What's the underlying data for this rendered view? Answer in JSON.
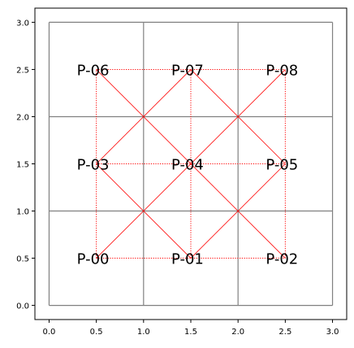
{
  "chart_data": {
    "type": "diagram",
    "xlim": [
      -0.15,
      3.15
    ],
    "ylim": [
      -0.15,
      3.15
    ],
    "x_ticks": [
      {
        "value": 0.0,
        "label": "0.0"
      },
      {
        "value": 0.5,
        "label": "0.5"
      },
      {
        "value": 1.0,
        "label": "1.0"
      },
      {
        "value": 1.5,
        "label": "1.5"
      },
      {
        "value": 2.0,
        "label": "2.0"
      },
      {
        "value": 2.5,
        "label": "2.5"
      },
      {
        "value": 3.0,
        "label": "3.0"
      }
    ],
    "y_ticks": [
      {
        "value": 0.0,
        "label": "0.0"
      },
      {
        "value": 0.5,
        "label": "0.5"
      },
      {
        "value": 1.0,
        "label": "1.0"
      },
      {
        "value": 1.5,
        "label": "1.5"
      },
      {
        "value": 2.0,
        "label": "2.0"
      },
      {
        "value": 2.5,
        "label": "2.5"
      },
      {
        "value": 3.0,
        "label": "3.0"
      }
    ],
    "grid": {
      "extent": [
        0,
        3
      ],
      "lines_at": [
        0,
        1,
        2,
        3
      ],
      "color": "#808080"
    },
    "points": [
      {
        "label": "P-00",
        "x": 0.5,
        "y": 0.5
      },
      {
        "label": "P-01",
        "x": 1.5,
        "y": 0.5
      },
      {
        "label": "P-02",
        "x": 2.5,
        "y": 0.5
      },
      {
        "label": "P-03",
        "x": 0.5,
        "y": 1.5
      },
      {
        "label": "P-04",
        "x": 1.5,
        "y": 1.5
      },
      {
        "label": "P-05",
        "x": 2.5,
        "y": 1.5
      },
      {
        "label": "P-06",
        "x": 0.5,
        "y": 2.5
      },
      {
        "label": "P-07",
        "x": 1.5,
        "y": 2.5
      },
      {
        "label": "P-08",
        "x": 2.5,
        "y": 2.5
      }
    ],
    "dotted_edges": [
      [
        [
          0.5,
          0.5
        ],
        [
          2.5,
          0.5
        ]
      ],
      [
        [
          0.5,
          1.5
        ],
        [
          2.5,
          1.5
        ]
      ],
      [
        [
          0.5,
          2.5
        ],
        [
          2.5,
          2.5
        ]
      ],
      [
        [
          0.5,
          0.5
        ],
        [
          0.5,
          2.5
        ]
      ],
      [
        [
          1.5,
          0.5
        ],
        [
          1.5,
          2.5
        ]
      ],
      [
        [
          2.5,
          0.5
        ],
        [
          2.5,
          2.5
        ]
      ]
    ],
    "solid_edges": [
      [
        [
          0.5,
          0.5
        ],
        [
          2.5,
          2.5
        ]
      ],
      [
        [
          0.5,
          1.5
        ],
        [
          1.5,
          2.5
        ]
      ],
      [
        [
          1.5,
          0.5
        ],
        [
          2.5,
          1.5
        ]
      ],
      [
        [
          0.5,
          2.5
        ],
        [
          2.5,
          0.5
        ]
      ],
      [
        [
          0.5,
          1.5
        ],
        [
          1.5,
          0.5
        ]
      ],
      [
        [
          1.5,
          2.5
        ],
        [
          2.5,
          1.5
        ]
      ]
    ],
    "edge_color": "#ff0000",
    "axis_color": "#000000"
  }
}
